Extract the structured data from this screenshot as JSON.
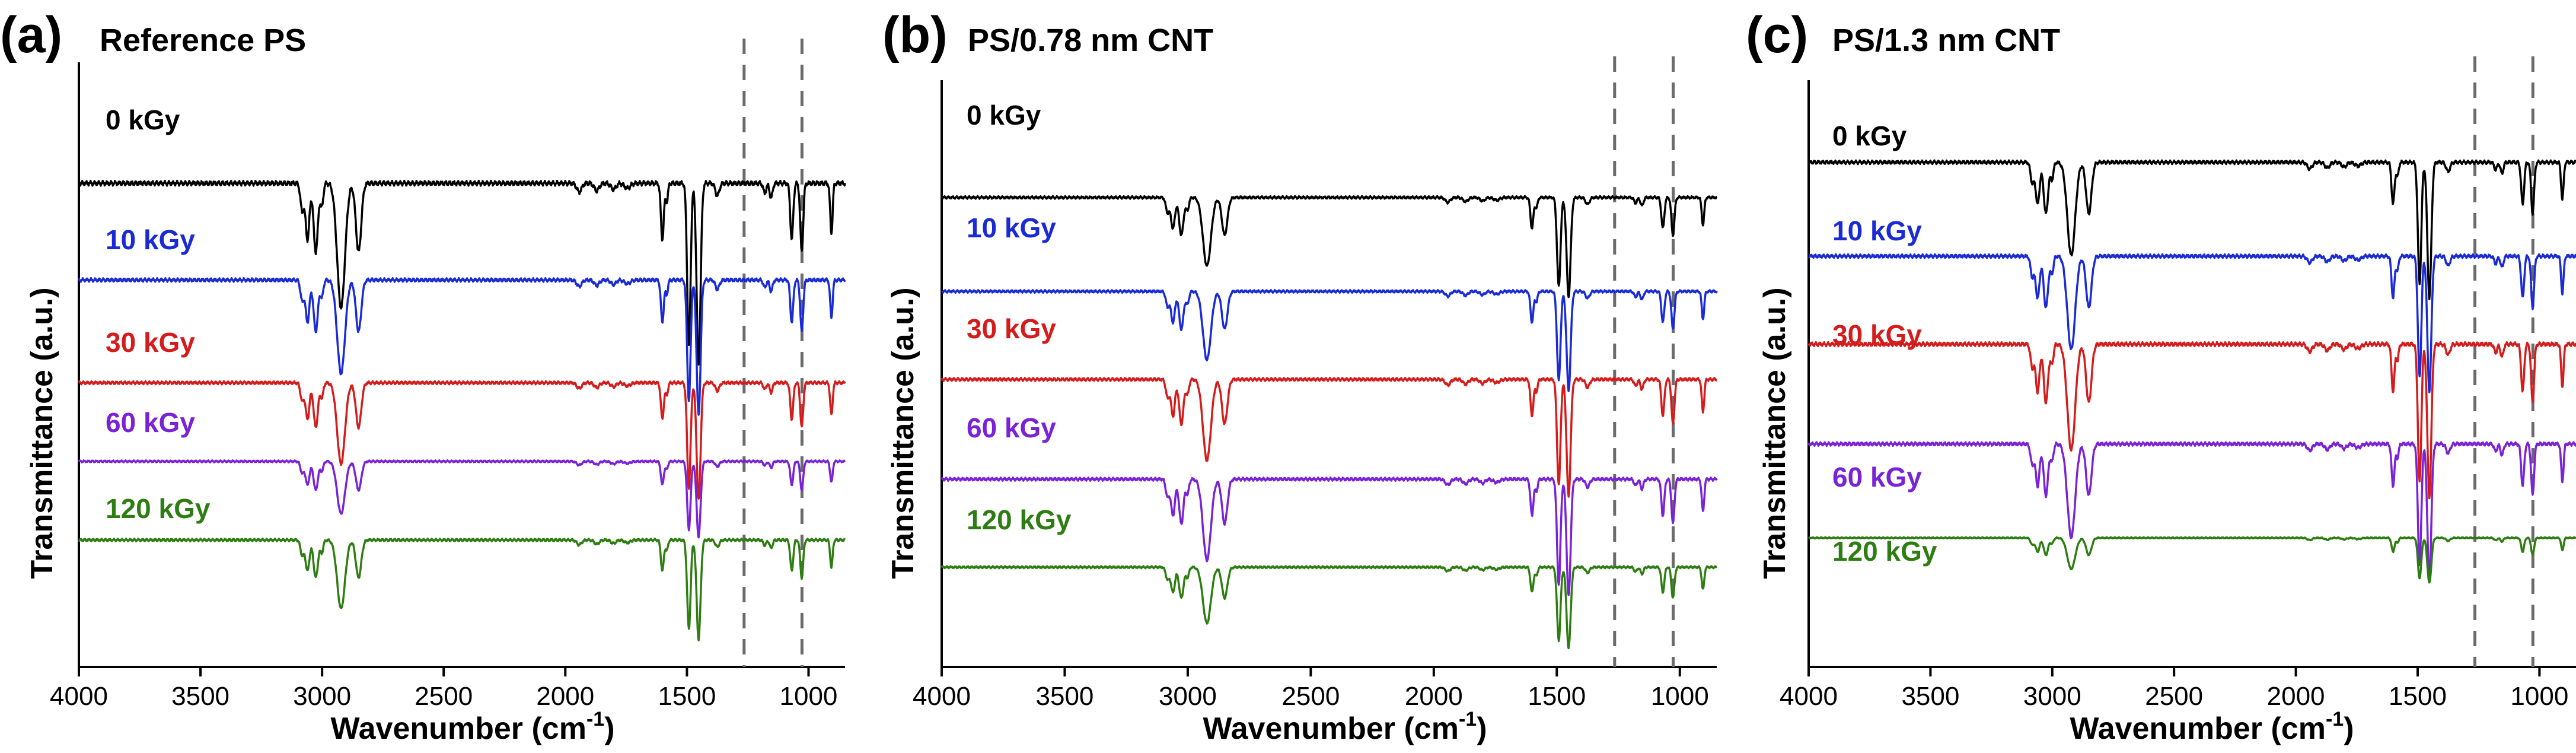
{
  "chart_data": [
    {
      "type": "line",
      "panel_label": "(a)",
      "title": "Reference PS",
      "xlabel": "Wavenumber (cm",
      "xlabel_superscript": "-1",
      "xlabel_close": ")",
      "ylabel": "Transmittance (a.u.)",
      "xlim": [
        4000,
        850
      ],
      "xticks": [
        "4000",
        "3500",
        "3000",
        "2500",
        "2000",
        "1500",
        "1000"
      ],
      "reference_lines_cm1": [
        1265,
        1027
      ],
      "series": [
        {
          "name": "0 kGy",
          "color": "#000000",
          "offset": 0.8,
          "depth": 1.0
        },
        {
          "name": "10 kGy",
          "color": "#1a2bd6",
          "offset": 0.64,
          "depth": 0.75
        },
        {
          "name": "30 kGy",
          "color": "#d41c1c",
          "offset": 0.47,
          "depth": 0.65
        },
        {
          "name": "60 kGy",
          "color": "#7a22d6",
          "offset": 0.34,
          "depth": 0.42
        },
        {
          "name": "120 kGy",
          "color": "#2e7d12",
          "offset": 0.21,
          "depth": 0.55
        }
      ]
    },
    {
      "type": "line",
      "panel_label": "(b)",
      "title": "PS/0.78 nm CNT",
      "xlabel": "Wavenumber (cm",
      "xlabel_superscript": "-1",
      "xlabel_close": ")",
      "ylabel": "Transmittance (a.u.)",
      "xlim": [
        4000,
        850
      ],
      "xticks": [
        "4000",
        "3500",
        "3000",
        "2500",
        "2000",
        "1500",
        "1000"
      ],
      "reference_lines_cm1": [
        1265,
        1027
      ],
      "series": [
        {
          "name": "0 kGy",
          "color": "#000000",
          "offset": 0.8,
          "depth": 0.55
        },
        {
          "name": "10 kGy",
          "color": "#1a2bd6",
          "offset": 0.64,
          "depth": 0.55
        },
        {
          "name": "30 kGy",
          "color": "#d41c1c",
          "offset": 0.49,
          "depth": 0.65
        },
        {
          "name": "60 kGy",
          "color": "#7a22d6",
          "offset": 0.32,
          "depth": 0.65
        },
        {
          "name": "120 kGy",
          "color": "#2e7d12",
          "offset": 0.17,
          "depth": 0.45
        }
      ]
    },
    {
      "type": "line",
      "panel_label": "(c)",
      "title": "PS/1.3 nm CNT",
      "xlabel": "Wavenumber (cm",
      "xlabel_superscript": "-1",
      "xlabel_close": ")",
      "ylabel": "Transmittance (a.u.)",
      "xlim": [
        4000,
        850
      ],
      "xticks": [
        "4000",
        "3500",
        "3000",
        "2500",
        "2000",
        "1500",
        "1000"
      ],
      "reference_lines_cm1": [
        1265,
        1027
      ],
      "series": [
        {
          "name": "0 kGy",
          "color": "#000000",
          "offset": 0.86,
          "depth": 0.75
        },
        {
          "name": "10 kGy",
          "color": "#1a2bd6",
          "offset": 0.7,
          "depth": 0.75
        },
        {
          "name": "30 kGy",
          "color": "#d41c1c",
          "offset": 0.55,
          "depth": 0.85
        },
        {
          "name": "60 kGy",
          "color": "#7a22d6",
          "offset": 0.38,
          "depth": 0.75
        },
        {
          "name": "120 kGy",
          "color": "#2e7d12",
          "offset": 0.22,
          "depth": 0.25
        }
      ]
    }
  ]
}
